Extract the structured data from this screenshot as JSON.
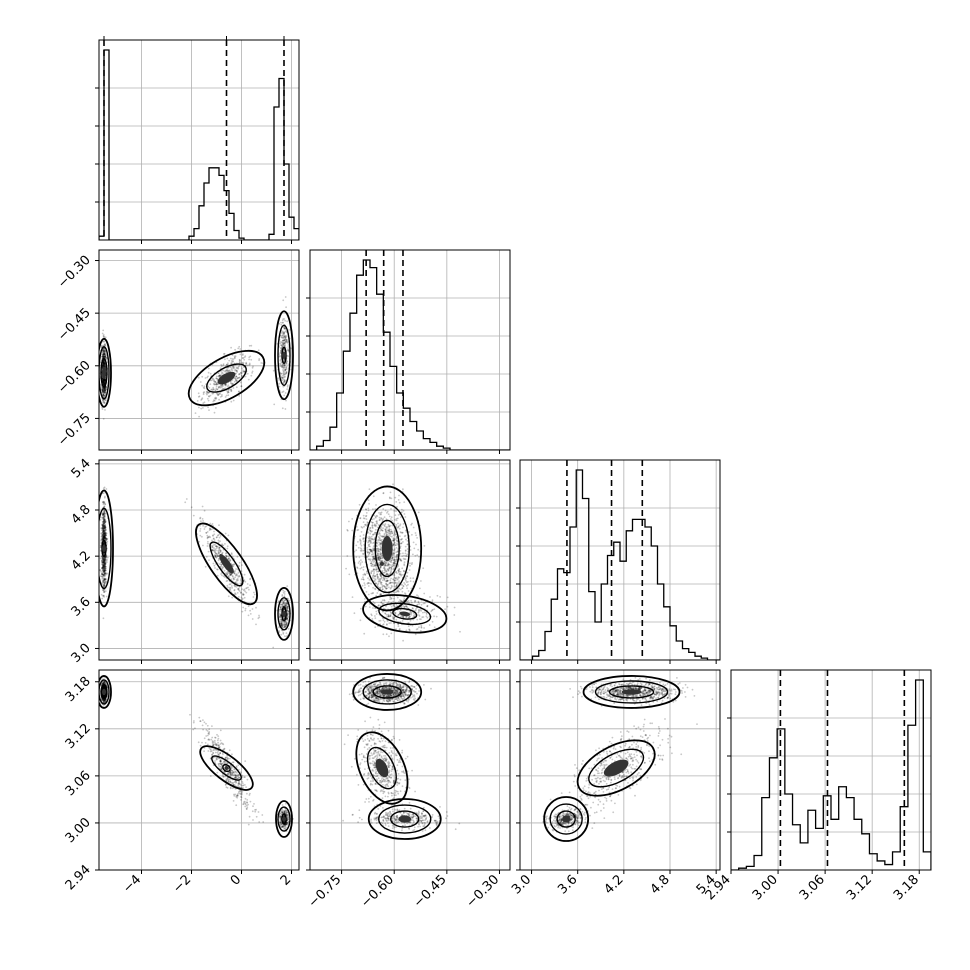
{
  "chart_data": {
    "type": "scatter",
    "title": "",
    "parameters": [
      "",
      "",
      "",
      ""
    ],
    "axes": [
      {
        "range": [
          -5.7,
          2.3
        ],
        "ticks": [
          -4,
          -2,
          0,
          2
        ],
        "tick_labels": [
          "−4",
          "−2",
          "0",
          "2"
        ]
      },
      {
        "range": [
          -0.84,
          -0.27
        ],
        "ticks": [
          -0.75,
          -0.6,
          -0.45,
          -0.3
        ],
        "tick_labels": [
          "−0.75",
          "−0.60",
          "−0.45",
          "−0.30"
        ]
      },
      {
        "range": [
          2.85,
          5.45
        ],
        "ticks": [
          3.0,
          3.6,
          4.2,
          4.8,
          5.4
        ],
        "tick_labels": [
          "3.0",
          "3.6",
          "4.2",
          "4.8",
          "5.4"
        ]
      },
      {
        "range": [
          2.94,
          3.195
        ],
        "ticks": [
          2.94,
          3.0,
          3.06,
          3.12,
          3.18
        ],
        "tick_labels": [
          "2.94",
          "3.00",
          "3.06",
          "3.12",
          "3.18"
        ]
      }
    ],
    "histograms": [
      {
        "edges_range": [
          -5.7,
          2.3
        ],
        "counts": [
          2,
          100,
          0,
          0,
          0,
          0,
          0,
          0,
          0,
          0,
          0,
          0,
          0,
          0,
          0,
          0,
          0,
          0,
          2,
          6,
          18,
          30,
          38,
          38,
          34,
          26,
          14,
          5,
          1,
          0,
          0,
          0,
          0,
          0,
          3,
          70,
          85,
          40,
          12,
          6
        ],
        "quantiles": [
          -5.5,
          -0.6,
          1.7
        ]
      },
      {
        "edges_range": [
          -0.84,
          -0.27
        ],
        "counts": [
          0,
          2,
          5,
          12,
          30,
          52,
          72,
          92,
          100,
          96,
          82,
          62,
          44,
          30,
          22,
          15,
          10,
          6,
          4,
          2,
          1,
          0,
          0,
          0,
          0,
          0,
          0,
          0,
          0,
          0
        ],
        "quantiles": [
          -0.68,
          -0.63,
          -0.575
        ]
      },
      {
        "edges_range": [
          2.85,
          5.45
        ],
        "counts": [
          0,
          0,
          2,
          5,
          15,
          32,
          48,
          46,
          70,
          100,
          85,
          36,
          20,
          40,
          55,
          62,
          52,
          68,
          74,
          74,
          70,
          60,
          40,
          28,
          18,
          10,
          6,
          4,
          2,
          1,
          0,
          0
        ],
        "quantiles": [
          3.46,
          4.04,
          4.44
        ]
      },
      {
        "edges_range": [
          2.94,
          3.195
        ],
        "counts": [
          0,
          1,
          2,
          8,
          40,
          62,
          78,
          42,
          25,
          15,
          33,
          23,
          41,
          28,
          46,
          40,
          28,
          20,
          9,
          5,
          3,
          10,
          35,
          80,
          105,
          10
        ],
        "quantiles": [
          3.003,
          3.063,
          3.161
        ]
      }
    ],
    "modes": [
      {
        "weight": 0.5,
        "mean": [
          -5.5,
          -0.62,
          4.3,
          3.167
        ],
        "sd": [
          0.05,
          0.04,
          0.28,
          0.006
        ]
      },
      {
        "weight": 0.3,
        "mean": [
          -0.6,
          -0.635,
          4.1,
          3.07
        ],
        "sd": [
          0.5,
          0.035,
          0.28,
          0.025
        ]
      },
      {
        "weight": 0.2,
        "mean": [
          1.7,
          -0.57,
          3.45,
          3.005
        ],
        "sd": [
          0.1,
          0.05,
          0.12,
          0.006
        ]
      }
    ],
    "contours": [
      {
        "row": 1,
        "col": 0,
        "mode": 0,
        "levels": [
          {
            "rx": 7,
            "ry": 34
          },
          {
            "rx": 5,
            "ry": 26
          },
          {
            "rx": 3,
            "ry": 14
          }
        ]
      },
      {
        "row": 1,
        "col": 0,
        "mode": 1,
        "levels": [
          {
            "rx": 42,
            "ry": 20,
            "rot": -30
          },
          {
            "rx": 22,
            "ry": 10,
            "rot": -30
          }
        ]
      },
      {
        "row": 1,
        "col": 0,
        "mode": 2,
        "levels": [
          {
            "rx": 9,
            "ry": 44
          },
          {
            "rx": 6,
            "ry": 30
          },
          {
            "rx": 2,
            "ry": 8
          }
        ]
      },
      {
        "row": 2,
        "col": 0,
        "mode": 0,
        "levels": [
          {
            "rx": 9,
            "ry": 58
          },
          {
            "rx": 7,
            "ry": 40
          },
          {
            "rx": 2,
            "ry": 8
          }
        ]
      },
      {
        "row": 2,
        "col": 0,
        "mode": 1,
        "levels": [
          {
            "rx": 48,
            "ry": 16,
            "rot": 55
          },
          {
            "rx": 26,
            "ry": 8,
            "rot": 55
          }
        ]
      },
      {
        "row": 2,
        "col": 0,
        "mode": 2,
        "levels": [
          {
            "rx": 9,
            "ry": 26
          },
          {
            "rx": 6,
            "ry": 16
          },
          {
            "rx": 2,
            "ry": 7
          }
        ]
      },
      {
        "row": 3,
        "col": 0,
        "mode": 0,
        "levels": [
          {
            "rx": 7,
            "ry": 16
          },
          {
            "rx": 5,
            "ry": 12
          },
          {
            "rx": 3,
            "ry": 7
          }
        ]
      },
      {
        "row": 3,
        "col": 0,
        "mode": 1,
        "levels": [
          {
            "rx": 32,
            "ry": 12,
            "rot": 38
          },
          {
            "rx": 18,
            "ry": 6,
            "rot": 38
          },
          {
            "rx": 4,
            "ry": 3,
            "rot": 38
          }
        ]
      },
      {
        "row": 3,
        "col": 0,
        "mode": 2,
        "levels": [
          {
            "rx": 8,
            "ry": 18
          },
          {
            "rx": 6,
            "ry": 12
          },
          {
            "rx": 2,
            "ry": 5
          }
        ]
      },
      {
        "row": 2,
        "col": 1,
        "mode": 0,
        "levels": [
          {
            "rx": 34,
            "ry": 62
          },
          {
            "rx": 22,
            "ry": 44
          },
          {
            "rx": 12,
            "ry": 28
          }
        ]
      },
      {
        "row": 2,
        "col": 1,
        "mode": 2,
        "levels": [
          {
            "rx": 42,
            "ry": 18,
            "rot": 8
          },
          {
            "rx": 26,
            "ry": 10,
            "rot": 8
          },
          {
            "rx": 12,
            "ry": 5,
            "rot": 8
          }
        ]
      },
      {
        "row": 3,
        "col": 1,
        "mode": 0,
        "levels": [
          {
            "rx": 34,
            "ry": 18
          },
          {
            "rx": 24,
            "ry": 12
          },
          {
            "rx": 14,
            "ry": 6
          }
        ]
      },
      {
        "row": 3,
        "col": 1,
        "mode": 1,
        "levels": [
          {
            "rx": 22,
            "ry": 38,
            "rot": -25
          },
          {
            "rx": 12,
            "ry": 22,
            "rot": -25
          }
        ]
      },
      {
        "row": 3,
        "col": 1,
        "mode": 2,
        "levels": [
          {
            "rx": 36,
            "ry": 20
          },
          {
            "rx": 26,
            "ry": 14
          },
          {
            "rx": 14,
            "ry": 8
          }
        ]
      },
      {
        "row": 2,
        "col": 1,
        "mode": 1,
        "levels": []
      },
      {
        "row": 3,
        "col": 2,
        "mode": 0,
        "levels": [
          {
            "rx": 48,
            "ry": 16
          },
          {
            "rx": 36,
            "ry": 11
          },
          {
            "rx": 22,
            "ry": 6
          }
        ]
      },
      {
        "row": 3,
        "col": 2,
        "mode": 1,
        "levels": [
          {
            "rx": 42,
            "ry": 22,
            "rot": -28
          },
          {
            "rx": 30,
            "ry": 14,
            "rot": -28
          }
        ]
      },
      {
        "row": 3,
        "col": 2,
        "mode": 2,
        "levels": [
          {
            "rx": 22,
            "ry": 22
          },
          {
            "rx": 16,
            "ry": 15
          },
          {
            "rx": 9,
            "ry": 8
          }
        ]
      }
    ],
    "grid": true,
    "legend": "none"
  }
}
